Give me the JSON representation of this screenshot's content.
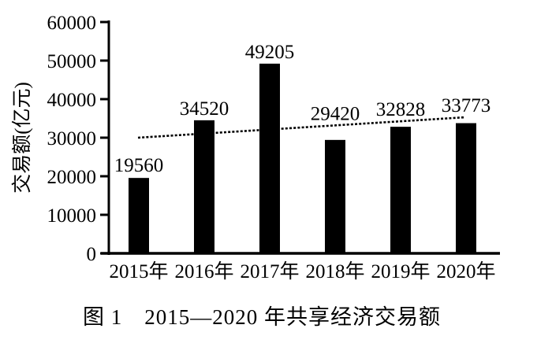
{
  "figure": {
    "caption": "图 1　2015—2020 年共享经济交易额"
  },
  "chart_data": {
    "type": "bar",
    "title": "",
    "xlabel": "",
    "ylabel": "交易额(亿元)",
    "categories": [
      "2015年",
      "2016年",
      "2017年",
      "2018年",
      "2019年",
      "2020年"
    ],
    "values": [
      19560,
      34520,
      49205,
      29420,
      32828,
      33773
    ],
    "value_labels": [
      "19560",
      "34520",
      "49205",
      "29420",
      "32828",
      "33773"
    ],
    "y_ticks": [
      0,
      10000,
      20000,
      30000,
      40000,
      50000,
      60000
    ],
    "ylim": [
      0,
      60000
    ],
    "grid": false,
    "bar_color": "#000000",
    "axis_color": "#000000",
    "trend_line": {
      "style": "dotted",
      "color": "#000000",
      "start_value": 30000,
      "end_value": 35300
    }
  }
}
